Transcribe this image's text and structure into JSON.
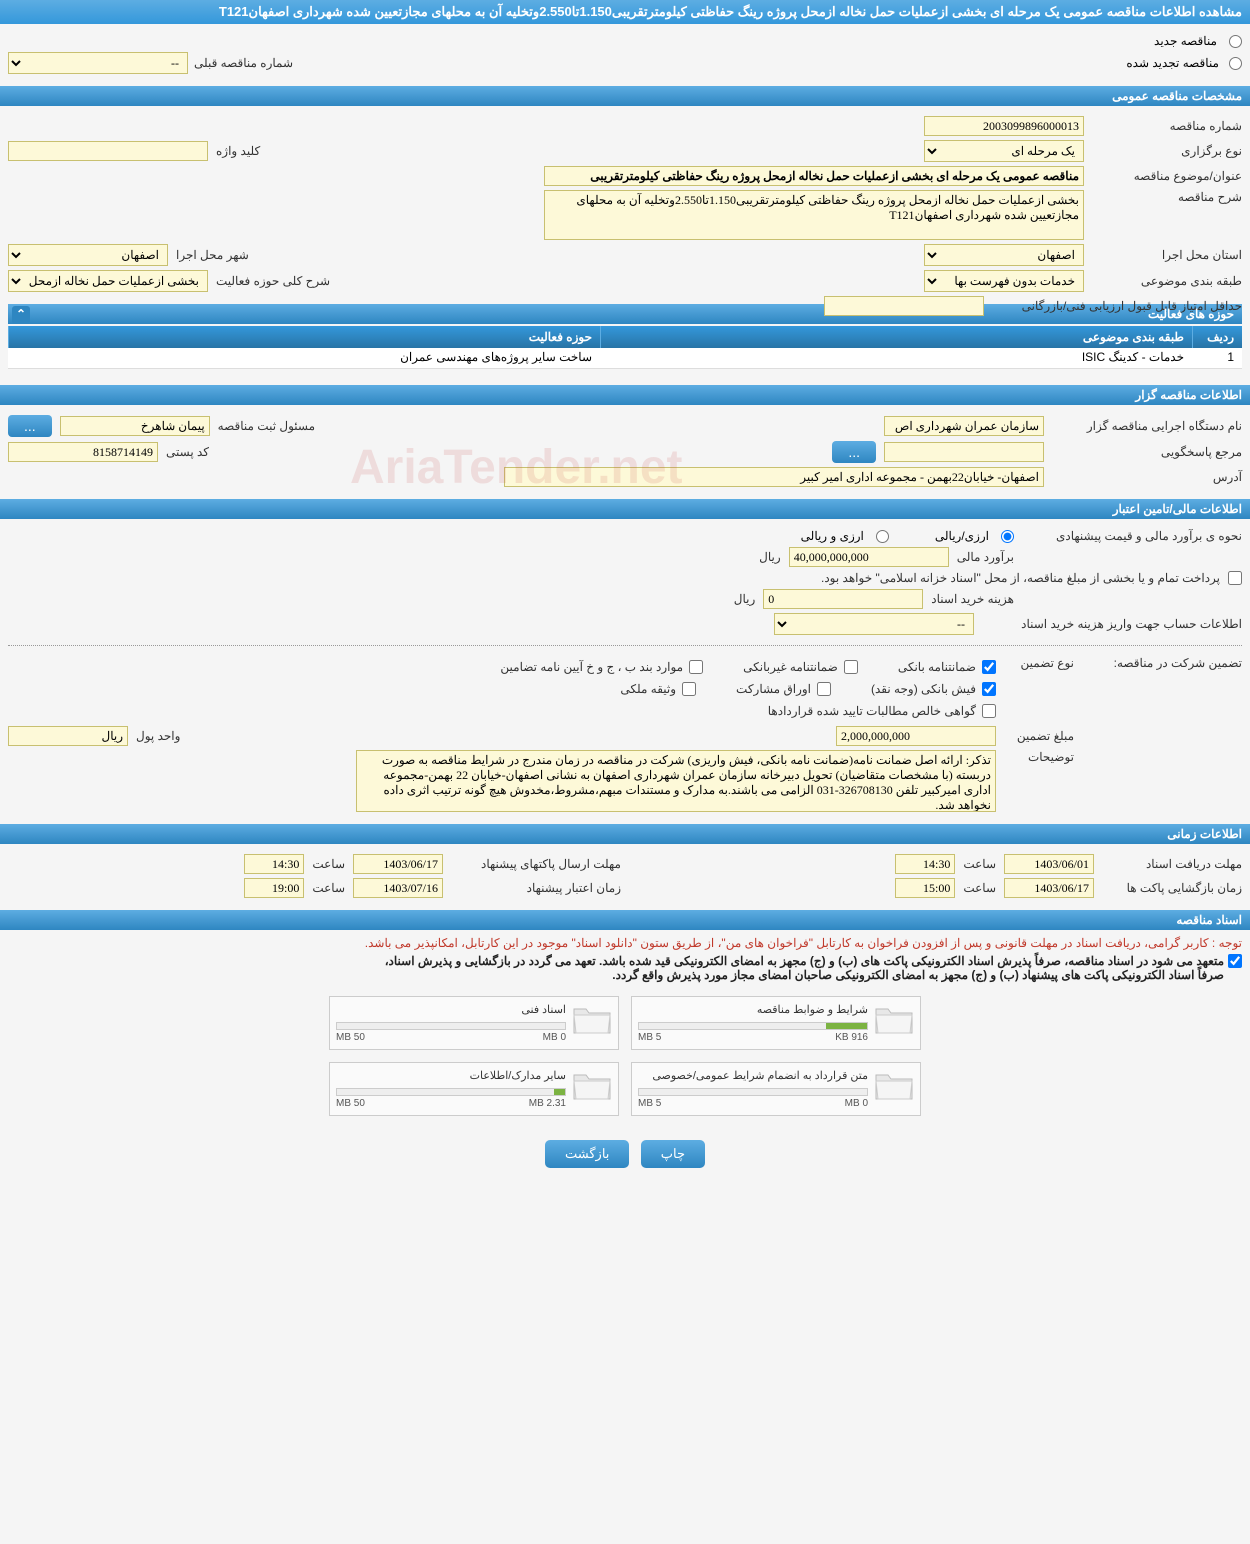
{
  "header": {
    "title": "مشاهده اطلاعات مناقصه عمومی یک مرحله ای بخشی ازعملیات حمل نخاله ازمحل پروژه رینگ حفاظتی کیلومترتقریبی1.150تا2.550وتخلیه آن به محلهای مجازتعیین شده شهرداری اصفهانT121"
  },
  "topRadios": {
    "opt1": "مناقصه جدید",
    "opt2": "مناقصه تجدید شده",
    "prevNumLbl": "شماره مناقصه قبلی",
    "prevNumVal": "--"
  },
  "section_general": {
    "title": "مشخصات مناقصه عمومی",
    "tenderNoLbl": "شماره مناقصه",
    "tenderNoVal": "2003099896000013",
    "typeLbl": "نوع برگزاری",
    "typeVal": "یک مرحله ای",
    "keywordLbl": "کلید واژه",
    "keywordVal": "",
    "subjectLbl": "عنوان/موضوع مناقصه",
    "subjectVal": "مناقصه عمومی یک مرحله ای بخشی ازعملیات حمل نخاله ازمحل پروژه رینگ حفاظتی کیلومترتقریبی",
    "descLbl": "شرح مناقصه",
    "descVal": "بخشی ازعملیات حمل نخاله ازمحل پروژه رینگ حفاظتی کیلومترتقریبی1.150تا2.550وتخلیه آن به محلهای مجازتعیین شده شهرداری اصفهانT121",
    "provinceLbl": "استان محل اجرا",
    "provinceVal": "اصفهان",
    "cityLbl": "شهر محل اجرا",
    "cityVal": "اصفهان",
    "categoryLbl": "طبقه بندی موضوعی",
    "categoryVal": "خدمات بدون فهرست بها",
    "scopeLbl": "شرح کلی حوزه فعالیت",
    "scopeVal": "بخشی ازعملیات حمل نخاله ازمحل پروژه رینگ",
    "minScoreLbl": "حداقل امتیاز قابل قبول ارزیابی فنی/بازرگانی",
    "minScoreVal": ""
  },
  "activityTable": {
    "title": "حوزه های فعالیت",
    "col1": "ردیف",
    "col2": "طبقه بندی موضوعی",
    "col3": "حوزه فعالیت",
    "row1_idx": "1",
    "row1_cat": "خدمات - کدینگ ISIC",
    "row1_act": "ساخت سایر پروژه‌های مهندسی عمران"
  },
  "section_org": {
    "title": "اطلاعات مناقصه گزار",
    "orgLbl": "نام دستگاه اجرایی مناقصه گزار",
    "orgVal": "سازمان عمران شهرداری اص",
    "respLbl": "مسئول ثبت مناقصه",
    "respVal": "پیمان شاهرخ",
    "contactLbl": "مرجع پاسخگویی",
    "contactVal": "",
    "postalLbl": "کد پستی",
    "postalVal": "8158714149",
    "addrLbl": "آدرس",
    "addrVal": "اصفهان- خیابان22بهمن - مجموعه اداری امیر کبیر"
  },
  "section_finance": {
    "title": "اطلاعات مالی/تامین اعتبار",
    "estMethodLbl": "نحوه ی برآورد مالی و قیمت پیشنهادی",
    "opt1": "ارزی/ریالی",
    "opt2": "ارزی و ریالی",
    "estLbl": "برآورد مالی",
    "estVal": "40,000,000,000",
    "currency": "ریال",
    "payNote": "پرداخت تمام و یا بخشی از مبلغ مناقصه، از محل \"اسناد خزانه اسلامی\" خواهد بود.",
    "docCostLbl": "هزینه خرید اسناد",
    "docCostVal": "0",
    "accountLbl": "اطلاعات حساب جهت واریز هزینه خرید اسناد",
    "accountVal": "--"
  },
  "guarantee": {
    "sectionLbl": "تضمین شرکت در مناقصه:",
    "typeLbl": "نوع تضمین",
    "c1": "ضمانتنامه بانکی",
    "c2": "ضمانتنامه غیربانکی",
    "c3": "موارد بند ب ، ج و خ آیین نامه تضامین",
    "c4": "فیش بانکی (وجه نقد)",
    "c5": "اوراق مشارکت",
    "c6": "وثیقه ملکی",
    "c7": "گواهی خالص مطالبات تایید شده قراردادها",
    "amountLbl": "مبلغ تضمین",
    "amountVal": "2,000,000,000",
    "unitLbl": "واحد پول",
    "unitVal": "ریال",
    "noteLbl": "توضیحات",
    "noteVal": "تذکر: ارائه اصل ضمانت نامه(ضمانت نامه بانکی، فیش واریزی) شرکت در مناقصه در زمان مندرج در شرایط مناقصه به صورت دربسته (با مشخصات متقاضیان) تحویل دبیرخانه سازمان عمران شهرداری اصفهان به نشانی اصفهان-خیابان 22 بهمن-مجموعه اداری امیرکبیر تلفن 326708130-031 الزامی می باشند.به مدارک و مستندات مبهم،مشروط،مخدوش هیچ گونه ترتیب اثری داده نخواهد شد."
  },
  "section_time": {
    "title": "اطلاعات زمانی",
    "docDeadlineLbl": "مهلت دریافت اسناد",
    "docDeadlineDate": "1403/06/01",
    "docDeadlineTime": "14:30",
    "bidDeadlineLbl": "مهلت ارسال پاکتهای پیشنهاد",
    "bidDeadlineDate": "1403/06/17",
    "bidDeadlineTime": "14:30",
    "openLbl": "زمان بازگشایی پاکت ها",
    "openDate": "1403/06/17",
    "openTime": "15:00",
    "validLbl": "زمان اعتبار پیشنهاد",
    "validDate": "1403/07/16",
    "validTime": "19:00",
    "timeLbl": "ساعت"
  },
  "section_docs": {
    "title": "اسناد مناقصه",
    "redNote": "توجه : کاربر گرامی، دریافت اسناد در مهلت قانونی و پس از افزودن فراخوان به کارتابل \"فراخوان های من\"، از طریق ستون \"دانلود اسناد\" موجود در این کارتابل، امکانپذیر می باشد.",
    "darkNote1": "متعهد می شود در اسناد مناقصه، صرفاً پذیرش اسناد الکترونیکی پاکت های (ب) و (ج) مجهز به امضای الکترونیکی قید شده باشد. تعهد می گردد در بازگشایی و پذیرش اسناد،",
    "darkNote2": "صرفاً اسناد الکترونیکی پاکت های پیشنهاد (ب) و (ج) مجهز به امضای الکترونیکی صاحبان امضای مجاز مورد پذیرش واقع گردد.",
    "folders": [
      {
        "title": "شرایط و ضوابط مناقصه",
        "used": "916 KB",
        "limit": "5 MB",
        "pct": 18
      },
      {
        "title": "اسناد فنی",
        "used": "0 MB",
        "limit": "50 MB",
        "pct": 0
      },
      {
        "title": "متن قرارداد به انضمام شرایط عمومی/خصوصی",
        "used": "0 MB",
        "limit": "5 MB",
        "pct": 0
      },
      {
        "title": "سایر مدارک/اطلاعات",
        "used": "2.31 MB",
        "limit": "50 MB",
        "pct": 5
      }
    ]
  },
  "footer": {
    "print": "چاپ",
    "back": "بازگشت"
  },
  "watermark": "AriaTender.net",
  "colors": {
    "bandStart": "#5dade2",
    "bandEnd": "#2e86c1",
    "fieldBg": "#fdf9d8",
    "fieldBorder": "#c8c070",
    "red": "#c0392b"
  }
}
